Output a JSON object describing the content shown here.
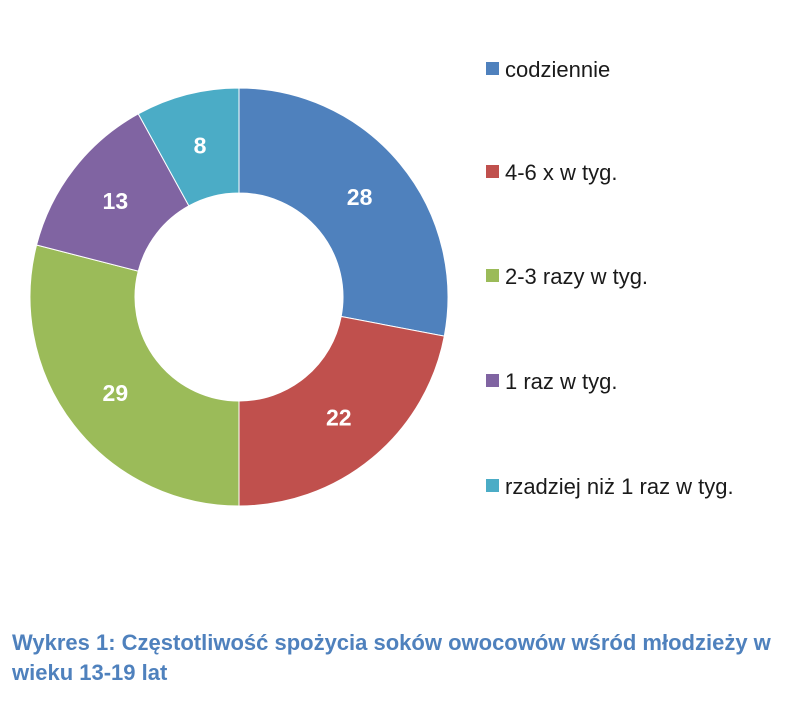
{
  "chart_data": {
    "type": "donut",
    "categories": [
      "codziennie",
      "4-6 x w tyg.",
      "2-3 razy w tyg.",
      "1 raz w tyg.",
      "rzadziej niż 1 raz w tyg."
    ],
    "values": [
      28,
      22,
      29,
      13,
      8
    ],
    "colors": [
      "#4f81bd",
      "#c0504d",
      "#9bbb59",
      "#8064a2",
      "#4bacc6"
    ],
    "legend": {
      "position": "right",
      "labels": [
        "codziennie",
        "4-6 x w tyg.",
        "2-3 razy w tyg.",
        "1 raz w tyg.",
        "rzadziej niż 1 raz w tyg."
      ]
    },
    "data_labels": [
      "28",
      "22",
      "29",
      "13",
      "8"
    ]
  },
  "caption": "Wykres 1: Częstotliwość spożycia soków owocowów wśród młodzieży w wieku 13-19 lat"
}
